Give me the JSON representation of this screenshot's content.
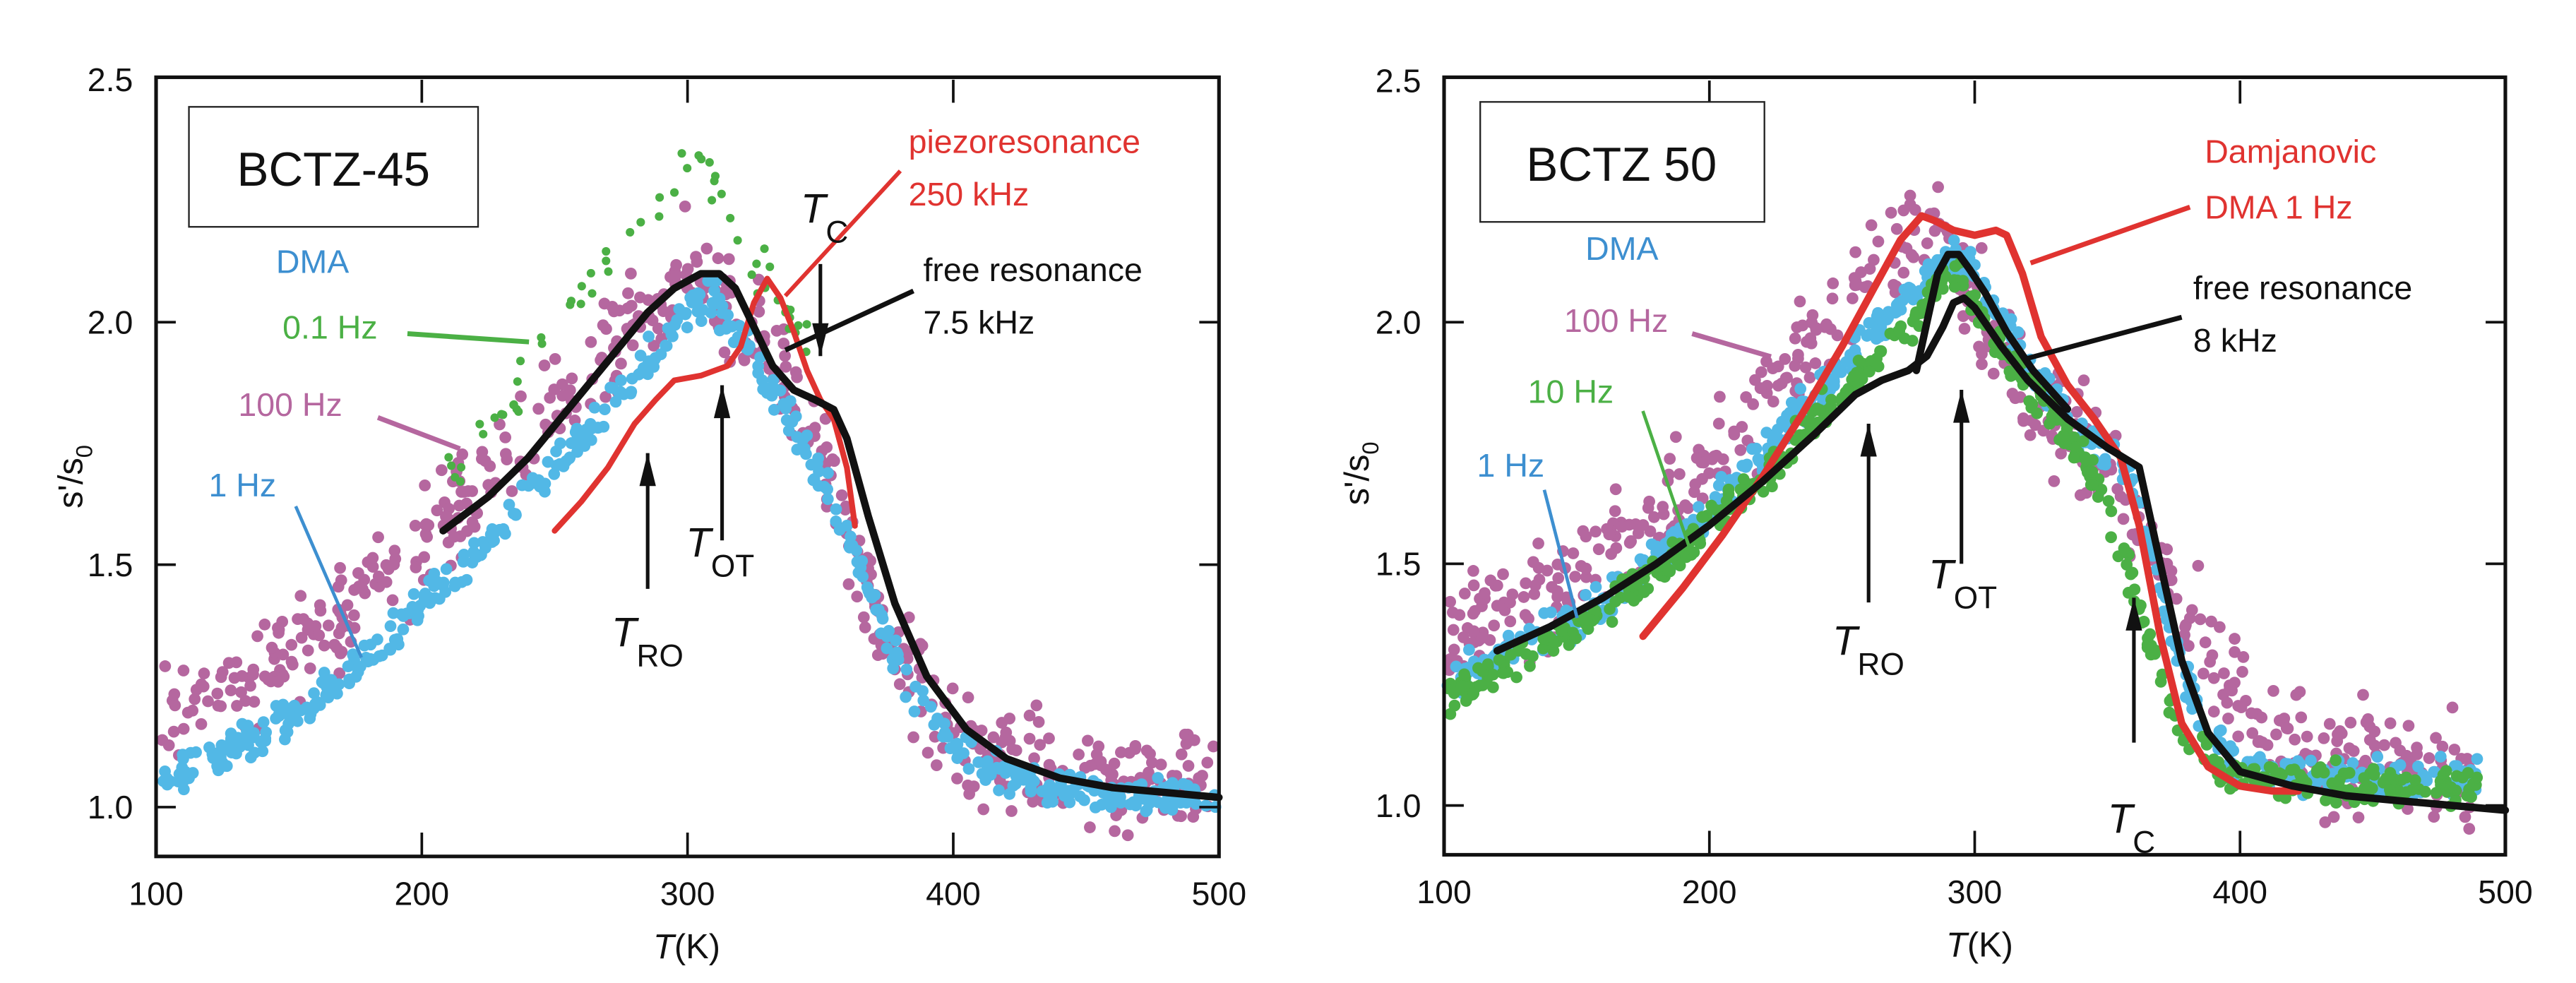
{
  "chart_data": [
    {
      "type": "scatter",
      "panel_label": "BCTZ-45",
      "xlabel_var": "T",
      "xlabel_unit": "(K)",
      "ylabel": "s'/s",
      "ylabel_sub": "0",
      "xlim": [
        100,
        500
      ],
      "ylim": [
        0.9,
        2.5
      ],
      "xticks": [
        100,
        200,
        300,
        400,
        500
      ],
      "yticks": [
        1.0,
        1.5,
        2.0,
        2.5
      ],
      "ytick_labels": [
        "1.0",
        "1.5",
        "2.0",
        "2.5"
      ],
      "grid": false,
      "series": [
        {
          "name": "DMA 100 Hz",
          "kind": "scatter",
          "color": "#b5679f",
          "x": [
            100,
            130,
            160,
            190,
            220,
            250,
            270,
            290,
            300,
            310,
            320,
            335,
            350,
            365,
            380,
            400,
            420,
            450,
            480,
            500
          ],
          "y": [
            1.2,
            1.25,
            1.35,
            1.48,
            1.65,
            1.82,
            1.95,
            2.05,
            2.12,
            2.1,
            2.02,
            1.9,
            1.72,
            1.5,
            1.3,
            1.15,
            1.1,
            1.07,
            1.05,
            1.05
          ],
          "spread": 0.08
        },
        {
          "name": "DMA 1 Hz",
          "kind": "scatter",
          "color": "#52b8e6",
          "x": [
            100,
            130,
            160,
            190,
            220,
            250,
            270,
            290,
            300,
            310,
            320,
            335,
            350,
            365,
            380,
            400,
            420,
            450,
            480,
            500
          ],
          "y": [
            1.05,
            1.12,
            1.22,
            1.36,
            1.52,
            1.7,
            1.82,
            1.95,
            2.02,
            2.04,
            1.97,
            1.83,
            1.68,
            1.5,
            1.28,
            1.12,
            1.06,
            1.03,
            1.02,
            1.02
          ],
          "spread": 0.03
        },
        {
          "name": "DMA 0.1 Hz",
          "kind": "scatter",
          "color": "#4bb045",
          "x": [
            210,
            230,
            250,
            265,
            280,
            295,
            305,
            315,
            330,
            345
          ],
          "y": [
            1.68,
            1.82,
            1.98,
            2.12,
            2.22,
            2.3,
            2.33,
            2.25,
            2.08,
            1.97
          ],
          "spread": 0.05
        },
        {
          "name": "piezoresonance 250 kHz",
          "kind": "line",
          "color": "#e03330",
          "x": [
            250,
            260,
            270,
            280,
            288,
            295,
            305,
            315,
            320,
            325,
            330,
            335,
            340,
            345,
            350,
            355,
            360,
            363
          ],
          "y": [
            1.57,
            1.63,
            1.7,
            1.79,
            1.84,
            1.88,
            1.89,
            1.91,
            1.95,
            2.04,
            2.09,
            2.05,
            1.98,
            1.9,
            1.84,
            1.8,
            1.7,
            1.58
          ]
        },
        {
          "name": "free resonance 7.5 kHz",
          "kind": "line",
          "color": "#111111",
          "x": [
            208,
            225,
            240,
            255,
            270,
            285,
            295,
            305,
            312,
            318,
            325,
            332,
            340,
            348,
            355,
            360,
            368,
            378,
            390,
            405,
            420,
            440,
            460,
            480,
            500
          ],
          "y": [
            1.57,
            1.64,
            1.72,
            1.82,
            1.92,
            2.02,
            2.07,
            2.1,
            2.1,
            2.07,
            1.99,
            1.91,
            1.86,
            1.84,
            1.82,
            1.76,
            1.6,
            1.42,
            1.27,
            1.16,
            1.1,
            1.06,
            1.04,
            1.03,
            1.02
          ]
        }
      ],
      "annotations": [
        {
          "text": "DMA",
          "color": "#3d8fd0"
        },
        {
          "text": "0.1 Hz",
          "color": "#4bb045"
        },
        {
          "text": "100 Hz",
          "color": "#b5679f"
        },
        {
          "text": "1 Hz",
          "color": "#3d8fd0"
        },
        {
          "text": "piezoresonance",
          "color": "#e03330"
        },
        {
          "text": "250 kHz",
          "color": "#e03330"
        },
        {
          "text": "free resonance",
          "color": "#111111"
        },
        {
          "text": "7.5 kHz",
          "color": "#111111"
        }
      ],
      "markers": [
        {
          "label": "T",
          "sub": "RO",
          "x": 285,
          "direction": "up",
          "y_from": 1.45,
          "y_to": 1.73
        },
        {
          "label": "T",
          "sub": "OT",
          "x": 313,
          "direction": "up",
          "y_from": 1.55,
          "y_to": 1.87
        },
        {
          "label": "T",
          "sub": "C",
          "x": 350,
          "direction": "down",
          "y_from": 2.12,
          "y_to": 1.93
        }
      ]
    },
    {
      "type": "scatter",
      "panel_label": "BCTZ 50",
      "xlabel_var": "T",
      "xlabel_unit": "(K)",
      "ylabel": "s'/s",
      "ylabel_sub": "0",
      "xlim": [
        100,
        500
      ],
      "ylim": [
        0.9,
        2.5
      ],
      "xticks": [
        100,
        200,
        300,
        400,
        500
      ],
      "yticks": [
        1.0,
        1.5,
        2.0,
        2.5
      ],
      "ytick_labels": [
        "1.0",
        "1.5",
        "2.0",
        "2.5"
      ],
      "grid": false,
      "series": [
        {
          "name": "DMA 100 Hz",
          "kind": "scatter",
          "color": "#b5679f",
          "x": [
            100,
            130,
            160,
            190,
            220,
            245,
            265,
            280,
            290,
            300,
            315,
            330,
            345,
            360,
            375,
            390,
            410,
            430,
            460,
            490
          ],
          "y": [
            1.35,
            1.42,
            1.5,
            1.65,
            1.82,
            1.98,
            2.1,
            2.17,
            2.12,
            2.05,
            1.9,
            1.8,
            1.72,
            1.6,
            1.45,
            1.3,
            1.18,
            1.12,
            1.08,
            1.05
          ],
          "spread": 0.09
        },
        {
          "name": "DMA 1 Hz",
          "kind": "scatter",
          "color": "#52b8e6",
          "x": [
            100,
            130,
            160,
            190,
            220,
            245,
            265,
            280,
            292,
            300,
            315,
            330,
            345,
            360,
            372,
            385,
            400,
            430,
            460,
            490
          ],
          "y": [
            1.25,
            1.33,
            1.42,
            1.56,
            1.72,
            1.88,
            2.0,
            2.08,
            2.14,
            2.1,
            1.96,
            1.84,
            1.75,
            1.66,
            1.4,
            1.17,
            1.08,
            1.06,
            1.05,
            1.06
          ],
          "spread": 0.03
        },
        {
          "name": "DMA 10 Hz",
          "kind": "scatter",
          "color": "#4bb045",
          "x": [
            100,
            130,
            160,
            190,
            220,
            245,
            265,
            280,
            292,
            300,
            315,
            330,
            345,
            355,
            365,
            375,
            390,
            420,
            460,
            490
          ],
          "y": [
            1.22,
            1.3,
            1.4,
            1.53,
            1.68,
            1.83,
            1.94,
            2.03,
            2.1,
            2.02,
            1.9,
            1.8,
            1.68,
            1.55,
            1.35,
            1.18,
            1.08,
            1.05,
            1.04,
            1.04
          ],
          "spread": 0.03
        },
        {
          "name": "Damjanovic DMA 1 Hz",
          "kind": "line",
          "color": "#e03330",
          "x": [
            175,
            190,
            205,
            220,
            235,
            250,
            262,
            272,
            280,
            285,
            292,
            300,
            308,
            312,
            318,
            325,
            335,
            345,
            355,
            362,
            370,
            378,
            388,
            400,
            412,
            422
          ],
          "y": [
            1.35,
            1.45,
            1.56,
            1.68,
            1.81,
            1.95,
            2.07,
            2.17,
            2.22,
            2.21,
            2.19,
            2.18,
            2.19,
            2.18,
            2.1,
            1.97,
            1.87,
            1.8,
            1.72,
            1.58,
            1.35,
            1.17,
            1.08,
            1.04,
            1.03,
            1.03
          ]
        },
        {
          "name": "free resonance 8 kHz",
          "kind": "line",
          "color": "#111111",
          "x": [
            120,
            140,
            160,
            180,
            200,
            220,
            240,
            255,
            265,
            275,
            282,
            288,
            292,
            296,
            300,
            310,
            320,
            335,
            350,
            362,
            370,
            378,
            388,
            400,
            420,
            440,
            460,
            480,
            500
          ],
          "y": [
            1.32,
            1.37,
            1.43,
            1.5,
            1.58,
            1.67,
            1.77,
            1.85,
            1.88,
            1.9,
            1.93,
            1.99,
            2.04,
            2.05,
            2.03,
            1.95,
            1.88,
            1.8,
            1.74,
            1.7,
            1.5,
            1.3,
            1.15,
            1.07,
            1.04,
            1.02,
            1.01,
            1.0,
            0.99
          ]
        },
        {
          "name": "free resonance 8 kHz (upper branch)",
          "kind": "line",
          "color": "#111111",
          "x": [
            278,
            282,
            286,
            290,
            294,
            298,
            304,
            312,
            322,
            335
          ],
          "y": [
            1.9,
            2.0,
            2.1,
            2.14,
            2.14,
            2.11,
            2.06,
            1.98,
            1.9,
            1.82
          ]
        }
      ],
      "annotations": [
        {
          "text": "DMA",
          "color": "#3d8fd0"
        },
        {
          "text": "100 Hz",
          "color": "#b5679f"
        },
        {
          "text": "10 Hz",
          "color": "#4bb045"
        },
        {
          "text": "1 Hz",
          "color": "#3d8fd0"
        },
        {
          "text": "Damjanovic",
          "color": "#e03330"
        },
        {
          "text": "DMA 1 Hz",
          "color": "#e03330"
        },
        {
          "text": "free resonance",
          "color": "#111111"
        },
        {
          "text": "8 kHz",
          "color": "#111111"
        }
      ],
      "markers": [
        {
          "label": "T",
          "sub": "RO",
          "x": 260,
          "direction": "up",
          "y_from": 1.42,
          "y_to": 1.79
        },
        {
          "label": "T",
          "sub": "OT",
          "x": 295,
          "direction": "up",
          "y_from": 1.5,
          "y_to": 1.86
        },
        {
          "label": "T",
          "sub": "C",
          "x": 360,
          "direction": "up",
          "y_from": 1.13,
          "y_to": 1.43
        }
      ]
    }
  ]
}
